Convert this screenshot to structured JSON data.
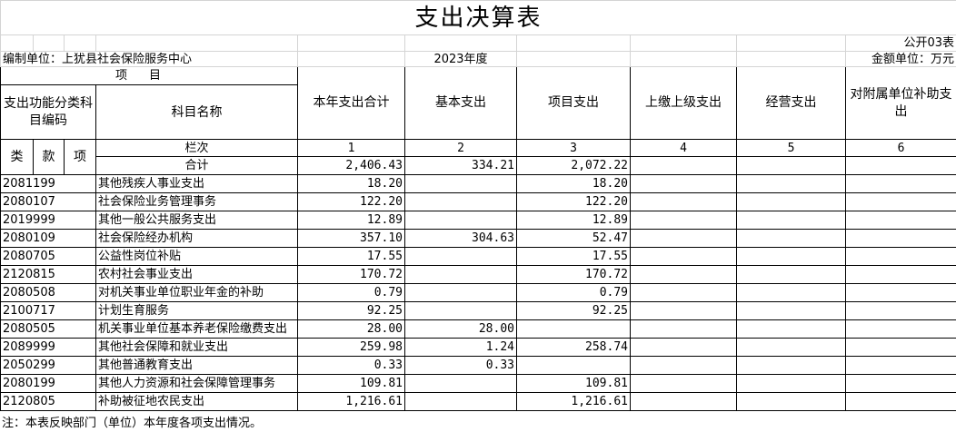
{
  "title": "支出决算表",
  "form_no": "公开03表",
  "unit": "编制单位：上犹县社会保险服务中心",
  "year": "2023年度",
  "currency": "金额单位：万元",
  "header": {
    "item": "项目",
    "code_group": "支出功能分类科目编码",
    "name": "科目名称",
    "columns": [
      "本年支出合计",
      "基本支出",
      "项目支出",
      "上缴上级支出",
      "经营支出",
      "对附属单位补助支出"
    ],
    "lei": "类",
    "kuan": "款",
    "xiang": "项",
    "row_index": "栏次",
    "col_numbers": [
      "1",
      "2",
      "3",
      "4",
      "5",
      "6"
    ]
  },
  "total": {
    "label": "合计",
    "values": [
      "2,406.43",
      "334.21",
      "2,072.22"
    ]
  },
  "rows": [
    [
      "2081199",
      "其他残疾人事业支出",
      "18.20",
      null,
      "18.20"
    ],
    [
      "2080107",
      "社会保险业务管理事务",
      "122.20",
      null,
      "122.20"
    ],
    [
      "2019999",
      "其他一般公共服务支出",
      "12.89",
      null,
      "12.89"
    ],
    [
      "2080109",
      "社会保险经办机构",
      "357.10",
      "304.63",
      "52.47"
    ],
    [
      "2080705",
      "公益性岗位补贴",
      "17.55",
      null,
      "17.55"
    ],
    [
      "2120815",
      "农村社会事业支出",
      "170.72",
      null,
      "170.72"
    ],
    [
      "2080508",
      "对机关事业单位职业年金的补助",
      "0.79",
      null,
      "0.79"
    ],
    [
      "2100717",
      "计划生育服务",
      "92.25",
      null,
      "92.25"
    ],
    [
      "2080505",
      "机关事业单位基本养老保险缴费支出",
      "28.00",
      "28.00",
      null
    ],
    [
      "2089999",
      "其他社会保障和就业支出",
      "259.98",
      "1.24",
      "258.74"
    ],
    [
      "2050299",
      "其他普通教育支出",
      "0.33",
      "0.33",
      null
    ],
    [
      "2080199",
      "其他人力资源和社会保障管理事务",
      "109.81",
      null,
      "109.81"
    ],
    [
      "2120805",
      "补助被征地农民支出",
      "1,216.61",
      null,
      "1,216.61"
    ]
  ],
  "note": "注：本表反映部门（单位）本年度各项支出情况。"
}
